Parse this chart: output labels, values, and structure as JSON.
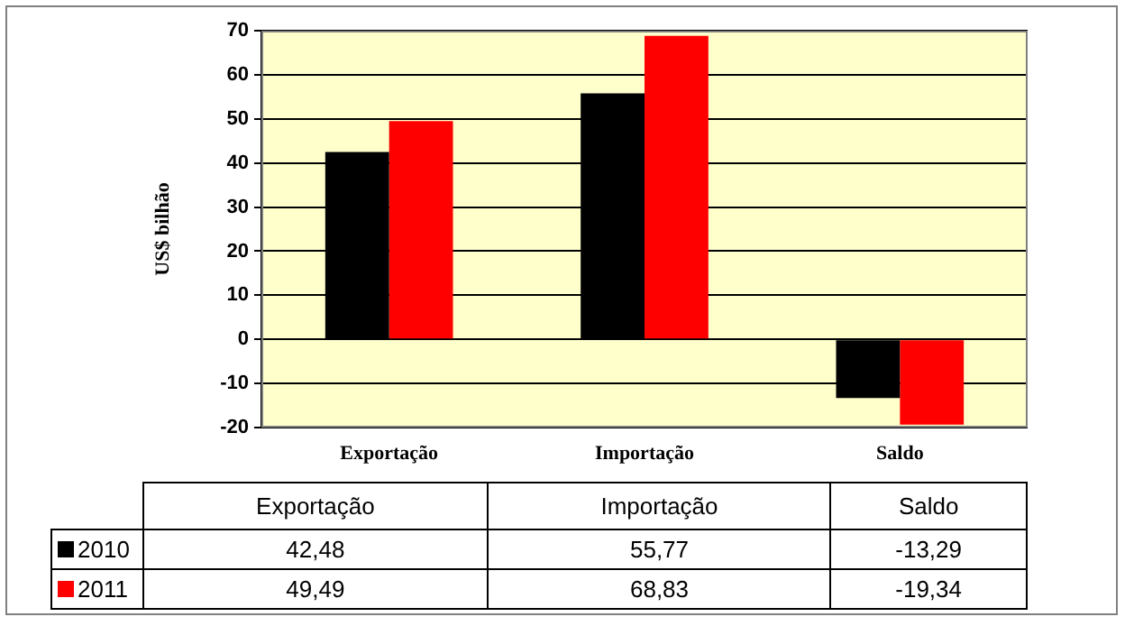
{
  "chart_data": {
    "type": "bar",
    "ylabel": "US$ bilhão",
    "categories": [
      "Exportação",
      "Importação",
      "Saldo"
    ],
    "series": [
      {
        "name": "2010",
        "color": "#000000",
        "values": [
          42.48,
          55.77,
          -13.29
        ],
        "value_labels": [
          "42,48",
          "55,77",
          "-13,29"
        ]
      },
      {
        "name": "2011",
        "color": "#ff0000",
        "values": [
          49.49,
          68.83,
          -19.34
        ],
        "value_labels": [
          "49,49",
          "68,83",
          "-19,34"
        ]
      }
    ],
    "ylim": [
      -20,
      70
    ],
    "yticks": [
      -20,
      -10,
      0,
      10,
      20,
      30,
      40,
      50,
      60,
      70
    ],
    "grid": "y",
    "legend": "bottom"
  }
}
